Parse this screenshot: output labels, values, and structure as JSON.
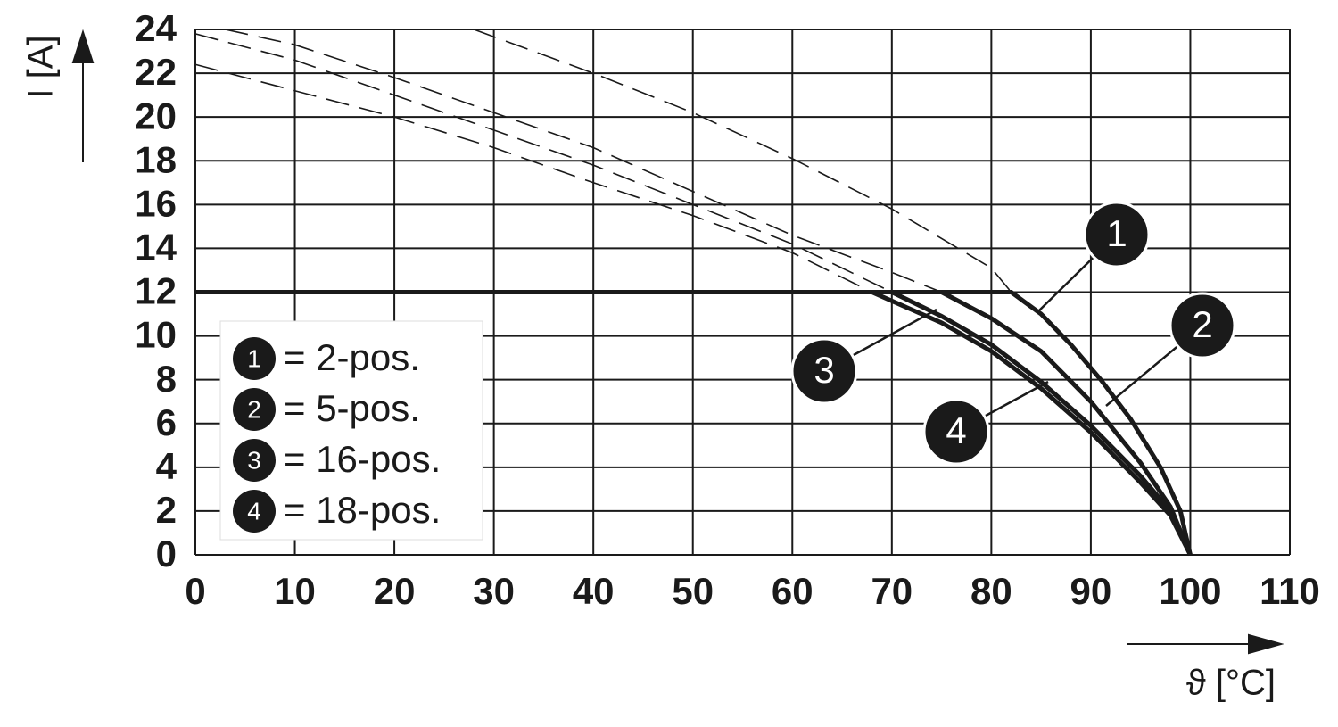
{
  "chart_data": {
    "type": "line",
    "x_label": "ϑ [°C]",
    "y_label": "I [A]",
    "xlim": [
      0,
      110
    ],
    "xticks": [
      0,
      10,
      20,
      30,
      40,
      50,
      60,
      70,
      80,
      90,
      100,
      110
    ],
    "ylim": [
      0,
      24
    ],
    "yticks": [
      0,
      2,
      4,
      6,
      8,
      10,
      12,
      14,
      16,
      18,
      20,
      22,
      24
    ],
    "grid": true,
    "color": "#1a1a1a",
    "series": [
      {
        "name": "1",
        "legend_label": "= 2-pos.",
        "style": "solid",
        "x": [
          0,
          82,
          85,
          88,
          91,
          94,
          97,
          99,
          100
        ],
        "values": [
          12,
          12,
          11,
          9.6,
          8,
          6.2,
          4,
          2,
          0
        ]
      },
      {
        "name": "2",
        "legend_label": "= 5-pos.",
        "style": "solid",
        "x": [
          75,
          80,
          85,
          90,
          95,
          98,
          100
        ],
        "values": [
          12,
          10.8,
          9.3,
          7,
          4.2,
          2.2,
          0
        ]
      },
      {
        "name": "3",
        "legend_label": "= 16-pos.",
        "style": "solid",
        "x": [
          70,
          75,
          80,
          85,
          90,
          95,
          98,
          100
        ],
        "values": [
          12,
          10.9,
          9.6,
          7.9,
          5.9,
          3.6,
          2,
          0
        ]
      },
      {
        "name": "4",
        "legend_label": "= 18-pos.",
        "style": "solid",
        "x": [
          68,
          75,
          80,
          85,
          90,
          95,
          98,
          100
        ],
        "values": [
          12,
          10.6,
          9.3,
          7.6,
          5.6,
          3.3,
          1.8,
          0
        ]
      },
      {
        "style": "dashed",
        "x": [
          28,
          40,
          50,
          60,
          70,
          80,
          82
        ],
        "values": [
          24,
          22,
          20.2,
          18.1,
          15.8,
          13.1,
          12
        ]
      },
      {
        "style": "dashed",
        "x": [
          3,
          10,
          20,
          30,
          40,
          50,
          60,
          70,
          75
        ],
        "values": [
          24,
          23.3,
          21.8,
          20.2,
          18.6,
          16.6,
          14.6,
          12.9,
          12
        ]
      },
      {
        "style": "dashed",
        "x": [
          0,
          10,
          20,
          30,
          40,
          50,
          60,
          70
        ],
        "values": [
          23.8,
          22.6,
          21,
          19.4,
          17.8,
          16,
          14.2,
          12
        ]
      },
      {
        "style": "dashed",
        "x": [
          0,
          10,
          20,
          30,
          40,
          50,
          60,
          68
        ],
        "values": [
          22.4,
          21.2,
          20,
          18.6,
          17,
          15.5,
          13.8,
          12
        ]
      }
    ]
  }
}
